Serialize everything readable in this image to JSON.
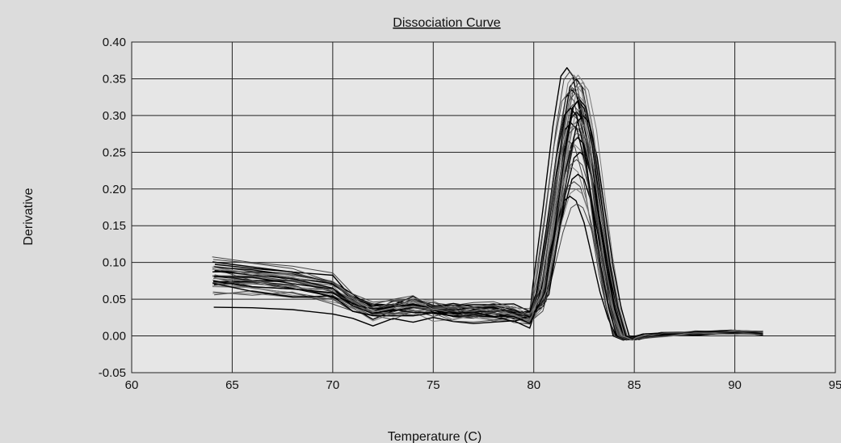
{
  "chart_data": {
    "type": "line",
    "title": "Dissociation Curve",
    "xlabel": "Temperature (C)",
    "ylabel": "Derivative",
    "xlim": [
      60,
      95
    ],
    "ylim": [
      -0.05,
      0.4
    ],
    "x_ticks": [
      60,
      65,
      70,
      75,
      80,
      85,
      90,
      95
    ],
    "y_ticks": [
      -0.05,
      0.0,
      0.05,
      0.1,
      0.15,
      0.2,
      0.25,
      0.3,
      0.35,
      0.4
    ],
    "y_tick_labels": [
      "-0.05",
      "0.00",
      "0.05",
      "0.10",
      "0.15",
      "0.20",
      "0.25",
      "0.30",
      "0.35",
      "0.40"
    ],
    "grid": true,
    "legend": "none",
    "colors": {
      "plot_background": "#e6e6e6",
      "page_background": "#dcdcdc",
      "grid": "#222222",
      "series_dark": "#000000",
      "series_mid": "#444444",
      "series_light": "#7a7a7a"
    },
    "template_x": [
      64.0,
      66.0,
      68.0,
      70.0,
      71.0,
      72.0,
      73.0,
      74.0,
      75.0,
      76.0,
      77.0,
      78.0,
      79.0,
      79.8,
      80.3,
      80.8,
      81.3,
      81.7,
      82.0,
      82.3,
      82.7,
      83.1,
      83.5,
      83.9,
      84.3,
      84.8,
      85.5,
      86.5,
      88.0,
      90.0,
      91.4
    ],
    "template_shape": [
      0.09,
      0.085,
      0.08,
      0.07,
      0.05,
      0.035,
      0.04,
      0.045,
      0.04,
      0.037,
      0.035,
      0.036,
      0.034,
      0.03,
      0.06,
      0.15,
      0.25,
      0.31,
      0.32,
      0.31,
      0.26,
      0.18,
      0.1,
      0.04,
      0.0,
      -0.005,
      0.0,
      0.002,
      0.004,
      0.005,
      0.004
    ],
    "series": [
      {
        "peak": 0.365,
        "shift": -0.35,
        "base": 0.095
      },
      {
        "peak": 0.36,
        "shift": -0.2,
        "base": 0.09
      },
      {
        "peak": 0.355,
        "shift": 0.0,
        "base": 0.085
      },
      {
        "peak": 0.35,
        "shift": 0.1,
        "base": 0.1
      },
      {
        "peak": 0.345,
        "shift": 0.25,
        "base": 0.08
      },
      {
        "peak": 0.34,
        "shift": 0.15,
        "base": 0.088
      },
      {
        "peak": 0.335,
        "shift": -0.1,
        "base": 0.092
      },
      {
        "peak": 0.33,
        "shift": 0.05,
        "base": 0.075
      },
      {
        "peak": 0.325,
        "shift": 0.3,
        "base": 0.083
      },
      {
        "peak": 0.32,
        "shift": 0.2,
        "base": 0.097
      },
      {
        "peak": 0.315,
        "shift": -0.05,
        "base": 0.086
      },
      {
        "peak": 0.31,
        "shift": 0.35,
        "base": 0.079
      },
      {
        "peak": 0.305,
        "shift": 0.12,
        "base": 0.091
      },
      {
        "peak": 0.3,
        "shift": 0.0,
        "base": 0.07
      },
      {
        "peak": 0.295,
        "shift": 0.22,
        "base": 0.087
      },
      {
        "peak": 0.29,
        "shift": -0.15,
        "base": 0.082
      },
      {
        "peak": 0.285,
        "shift": 0.08,
        "base": 0.078
      },
      {
        "peak": 0.28,
        "shift": 0.28,
        "base": 0.094
      },
      {
        "peak": 0.27,
        "shift": 0.18,
        "base": 0.072
      },
      {
        "peak": 0.265,
        "shift": -0.25,
        "base": 0.084
      },
      {
        "peak": 0.26,
        "shift": 0.05,
        "base": 0.065
      },
      {
        "peak": 0.25,
        "shift": 0.3,
        "base": 0.08
      },
      {
        "peak": 0.24,
        "shift": 0.12,
        "base": 0.077
      },
      {
        "peak": 0.23,
        "shift": -0.1,
        "base": 0.068
      },
      {
        "peak": 0.22,
        "shift": 0.2,
        "base": 0.074
      },
      {
        "peak": 0.21,
        "shift": 0.0,
        "base": 0.062
      },
      {
        "peak": 0.2,
        "shift": 0.1,
        "base": 0.058
      },
      {
        "peak": 0.19,
        "shift": -0.2,
        "base": 0.045
      },
      {
        "peak": 0.18,
        "shift": 0.15,
        "base": 0.06
      },
      {
        "peak": 0.345,
        "shift": 0.42,
        "base": 0.073
      },
      {
        "peak": 0.3,
        "shift": 0.45,
        "base": 0.066
      },
      {
        "peak": 0.33,
        "shift": -0.3,
        "base": 0.105
      },
      {
        "peak": 0.355,
        "shift": 0.2,
        "base": 0.081
      },
      {
        "peak": 0.31,
        "shift": -0.18,
        "base": 0.089
      },
      {
        "peak": 0.275,
        "shift": 0.33,
        "base": 0.076
      },
      {
        "peak": 0.29,
        "shift": 0.07,
        "base": 0.093
      },
      {
        "peak": 0.322,
        "shift": 0.27,
        "base": 0.069
      },
      {
        "peak": 0.338,
        "shift": -0.08,
        "base": 0.099
      }
    ]
  }
}
